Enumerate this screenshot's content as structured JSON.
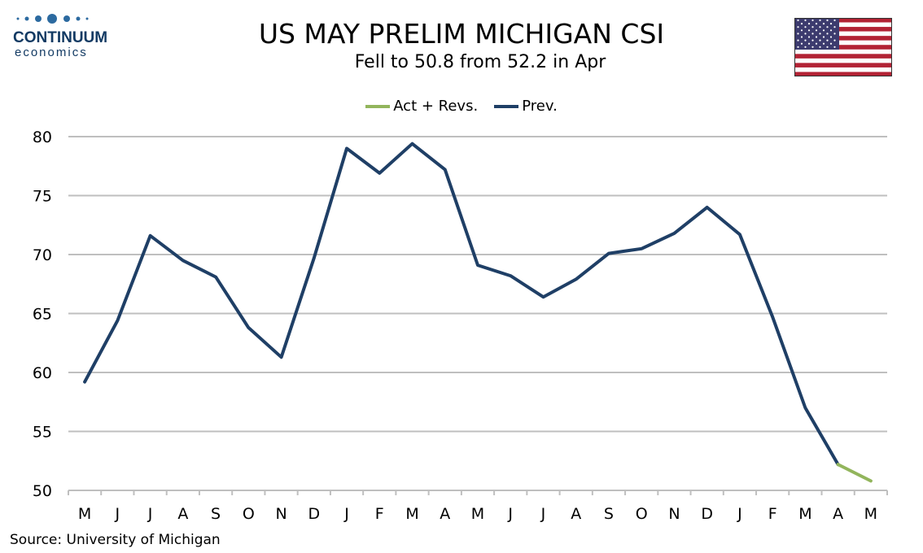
{
  "header": {
    "logo_name": "CONTINUUM",
    "logo_sub": "economics",
    "title": "US MAY PRELIM MICHIGAN CSI",
    "subtitle": "Fell to 50.8 from 52.2 in Apr"
  },
  "flag": {
    "icon": "us-flag-icon",
    "stripe_red": "#b22234",
    "canton_blue": "#3c3b6e"
  },
  "footer": {
    "source": "Source: University of Michigan"
  },
  "chart_data": {
    "type": "line",
    "title": "US MAY PRELIM MICHIGAN CSI",
    "subtitle": "Fell to 50.8 from 52.2 in Apr",
    "categories": [
      "M",
      "J",
      "J",
      "A",
      "S",
      "O",
      "N",
      "D",
      "J",
      "F",
      "M",
      "A",
      "M",
      "J",
      "J",
      "A",
      "S",
      "O",
      "N",
      "D",
      "J",
      "F",
      "M",
      "A",
      "M"
    ],
    "series": [
      {
        "name": "Act + Revs.",
        "color": "#92b55c",
        "values": [
          null,
          null,
          null,
          null,
          null,
          null,
          null,
          null,
          null,
          null,
          null,
          null,
          null,
          null,
          null,
          null,
          null,
          null,
          null,
          null,
          null,
          null,
          null,
          52.2,
          50.8
        ]
      },
      {
        "name": "Prev.",
        "color": "#1f3f66",
        "values": [
          59.2,
          64.4,
          71.6,
          69.5,
          68.1,
          63.8,
          61.3,
          69.7,
          79.0,
          76.9,
          79.4,
          77.2,
          69.1,
          68.2,
          66.4,
          67.9,
          70.1,
          70.5,
          71.8,
          74.0,
          71.7,
          64.7,
          57.0,
          52.2,
          null
        ]
      }
    ],
    "ylim": [
      50,
      80
    ],
    "yticks": [
      50,
      55,
      60,
      65,
      70,
      75,
      80
    ],
    "grid": true,
    "legend_position": "top-center",
    "xlabel": "",
    "ylabel": ""
  }
}
